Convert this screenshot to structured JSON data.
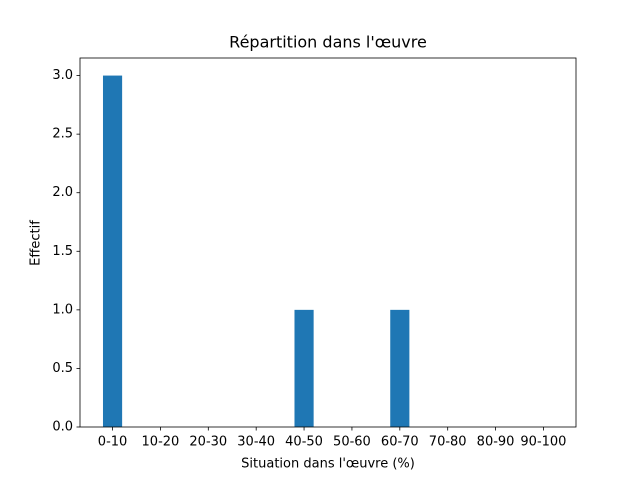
{
  "chart_data": {
    "type": "bar",
    "title": "Répartition dans l'œuvre",
    "x_label": "Situation dans l'œuvre (%)",
    "y_label": "Effectif",
    "categories": [
      "0-10",
      "10-20",
      "20-30",
      "30-40",
      "40-50",
      "50-60",
      "60-70",
      "70-80",
      "80-90",
      "90-100"
    ],
    "values": [
      3,
      0,
      0,
      0,
      1,
      0,
      1,
      0,
      0,
      0
    ],
    "color": "#1f77b4",
    "ylim": [
      0,
      3.15
    ],
    "yticks": [
      {
        "value": 0,
        "label": "0.0"
      },
      {
        "value": 0.5,
        "label": "0.5"
      },
      {
        "value": 1,
        "label": "1.0"
      },
      {
        "value": 1.5,
        "label": "1.5"
      },
      {
        "value": 2,
        "label": "2.0"
      },
      {
        "value": 2.5,
        "label": "2.5"
      },
      {
        "value": 3,
        "label": "3.0"
      }
    ],
    "grid": false
  }
}
